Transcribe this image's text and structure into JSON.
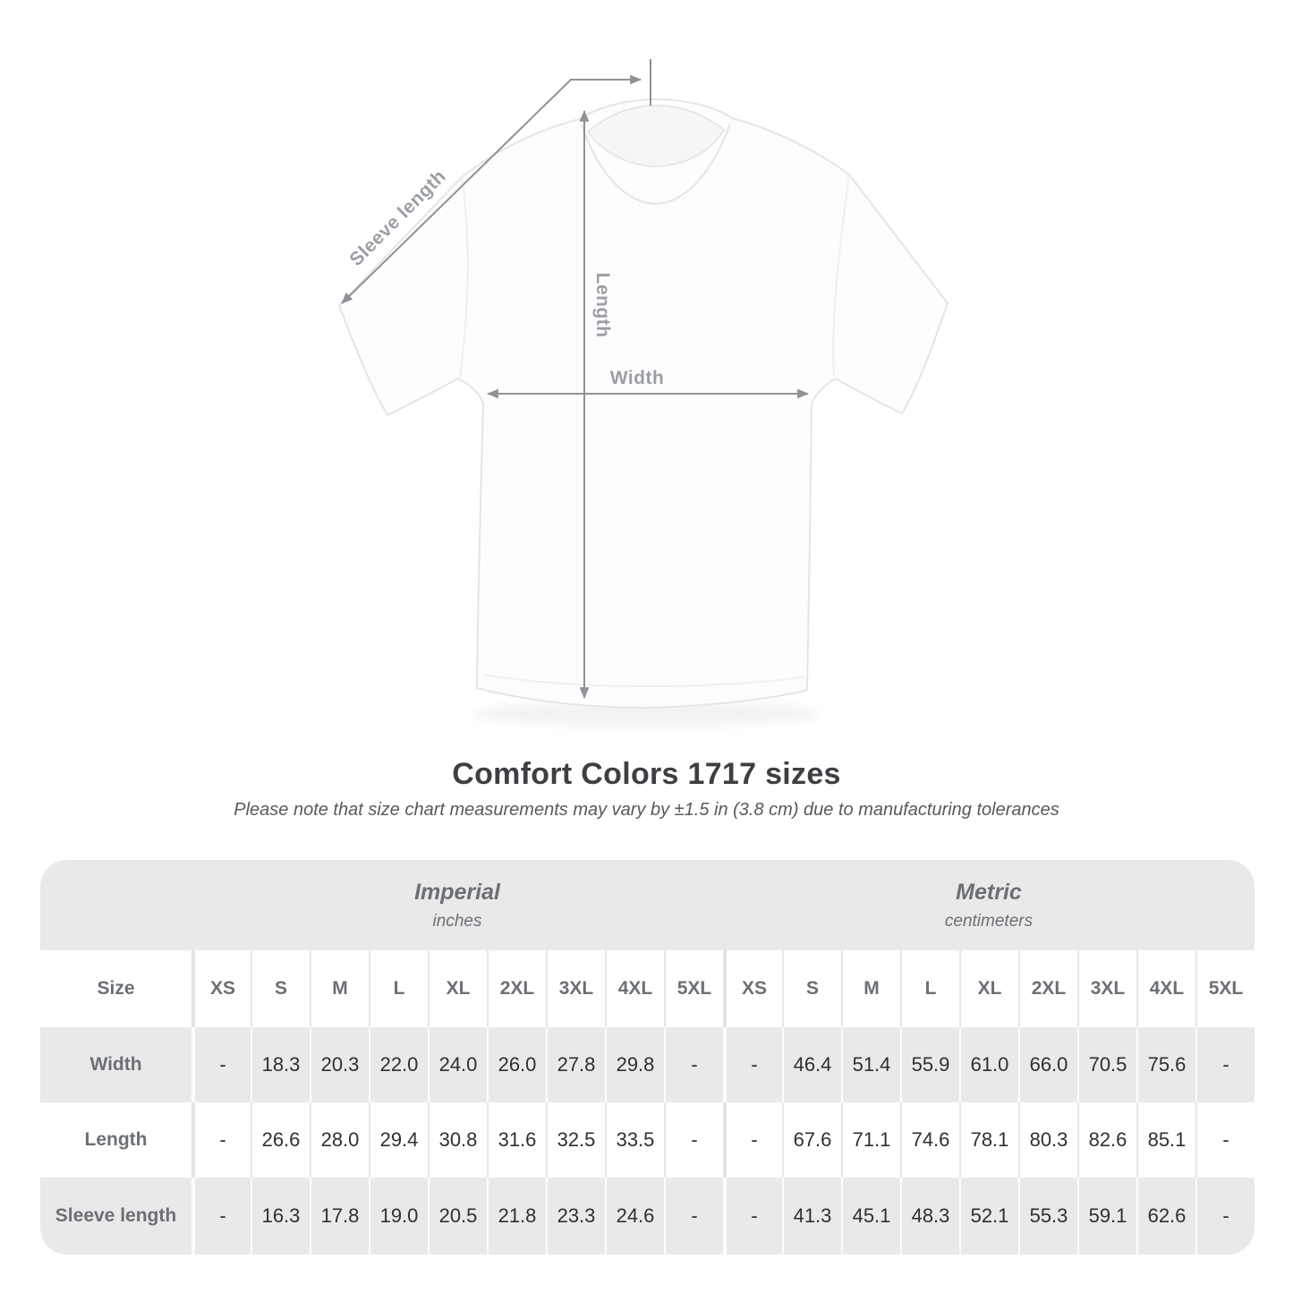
{
  "diagram": {
    "labels": {
      "sleeve": "Sleeve length",
      "length": "Length",
      "width": "Width"
    }
  },
  "header": {
    "title": "Comfort Colors 1717 sizes",
    "note": "Please note that size chart measurements may vary by ±1.5 in (3.8 cm) due to manufacturing tolerances"
  },
  "table": {
    "size_label": "Size",
    "sizes": [
      "XS",
      "S",
      "M",
      "L",
      "XL",
      "2XL",
      "3XL",
      "4XL",
      "5XL"
    ],
    "unit_headers": [
      {
        "title": "Imperial",
        "subtitle": "inches"
      },
      {
        "title": "Metric",
        "subtitle": "centimeters"
      }
    ],
    "rows": [
      {
        "label": "Width",
        "inches": [
          "-",
          "18.3",
          "20.3",
          "22.0",
          "24.0",
          "26.0",
          "27.8",
          "29.8",
          "-"
        ],
        "cm": [
          "-",
          "46.4",
          "51.4",
          "55.9",
          "61.0",
          "66.0",
          "70.5",
          "75.6",
          "-"
        ]
      },
      {
        "label": "Length",
        "inches": [
          "-",
          "26.6",
          "28.0",
          "29.4",
          "30.8",
          "31.6",
          "32.5",
          "33.5",
          "-"
        ],
        "cm": [
          "-",
          "67.6",
          "71.1",
          "74.6",
          "78.1",
          "80.3",
          "82.6",
          "85.1",
          "-"
        ]
      },
      {
        "label": "Sleeve length",
        "inches": [
          "-",
          "16.3",
          "17.8",
          "19.0",
          "20.5",
          "21.8",
          "23.3",
          "24.6",
          "-"
        ],
        "cm": [
          "-",
          "41.3",
          "45.1",
          "48.3",
          "52.1",
          "55.3",
          "59.1",
          "62.6",
          "-"
        ]
      }
    ]
  },
  "colors": {
    "row_gray": "#e9e9ea",
    "header_text": "#6c7075",
    "value_text": "#2e3032",
    "arrow": "#8f9397",
    "diagram_label": "#9b9fa4",
    "title_text": "#3d3f42"
  }
}
